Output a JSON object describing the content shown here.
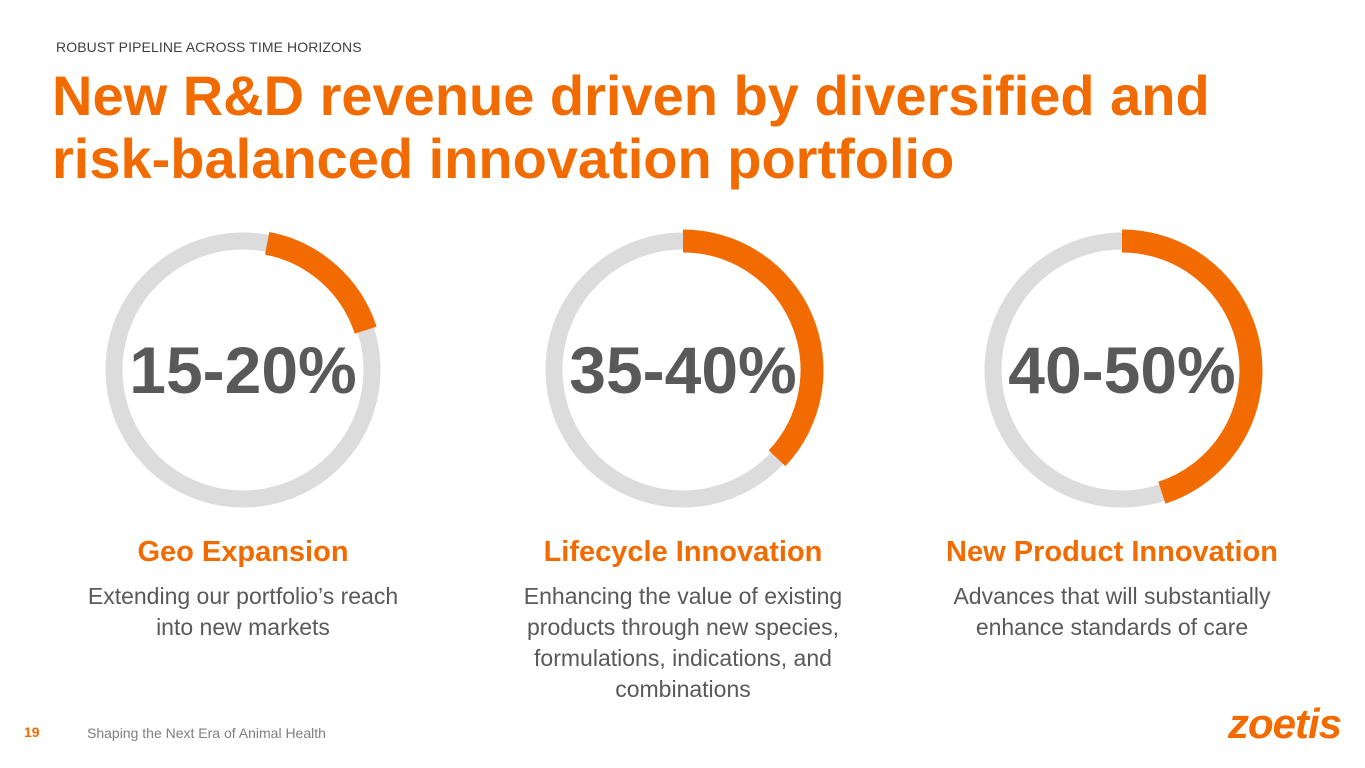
{
  "kicker": "ROBUST PIPELINE ACROSS TIME HORIZONS",
  "title": "New R&D revenue driven by diversified and risk-balanced innovation portfolio",
  "colors": {
    "accent": "#f26b00",
    "ring_track": "#dcdcdc",
    "text": "#595959"
  },
  "columns": [
    {
      "percent": "15-20%",
      "fill_start_pct": 3,
      "fill_end_pct": 20,
      "heading": "Geo Expansion",
      "description": "Extending our portfolio’s reach into new markets"
    },
    {
      "percent": "35-40%",
      "fill_start_pct": 0,
      "fill_end_pct": 37,
      "heading": "Lifecycle Innovation",
      "description": "Enhancing the value of existing products through new species, formulations, indications, and combinations"
    },
    {
      "percent": "40-50%",
      "fill_start_pct": 0,
      "fill_end_pct": 45,
      "heading": "New Product Innovation",
      "description": "Advances that will substantially enhance standards of care"
    }
  ],
  "footer": {
    "page_number": "19",
    "text": "Shaping the Next Era of Animal Health"
  },
  "logo": "zoetis"
}
